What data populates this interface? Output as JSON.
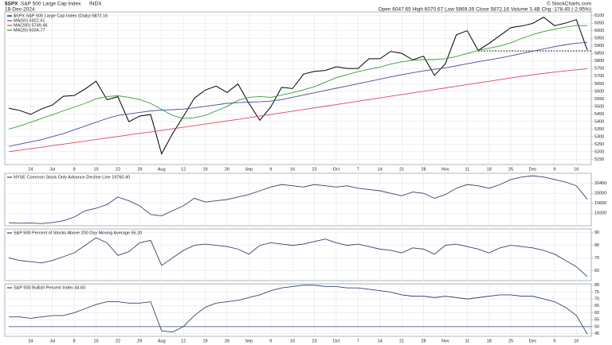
{
  "header": {
    "symbol": "$SPX",
    "name": "S&P 500 Large Cap Index",
    "exchange": "INDX",
    "date": "18-Dec-2024",
    "quote": "Open 6047.65 High 6070.67 Low 5869.39 Close 5872.16 Volume 3.4B Chg -178.45 (-2.95%)",
    "credit": "© StockCharts.com"
  },
  "chart_data": [
    {
      "type": "line",
      "categories": [
        null,
        null,
        "24",
        null,
        "Jul",
        null,
        "8",
        null,
        "15",
        null,
        "22",
        null,
        "29",
        null,
        "Aug",
        null,
        "12",
        null,
        "19",
        null,
        "26",
        null,
        "Sep",
        null,
        "9",
        null,
        "16",
        null,
        "23",
        null,
        "Oct",
        null,
        "7",
        null,
        "14",
        null,
        "21",
        null,
        "28",
        null,
        "Nov",
        null,
        "11",
        null,
        "18",
        null,
        "25",
        null,
        "Dec",
        null,
        "9",
        null,
        "16",
        null
      ],
      "series": [
        {
          "name": "$SPX S&P 500 Large Cap Index (Daily) 5872.16",
          "color": "#000000",
          "values": [
            5487,
            5473,
            5447,
            5483,
            5509,
            5567,
            5572,
            5615,
            5667,
            5544,
            5564,
            5399,
            5436,
            5446,
            5186,
            5319,
            5434,
            5554,
            5608,
            5634,
            5592,
            5648,
            5520,
            5408,
            5496,
            5626,
            5618,
            5713,
            5732,
            5738,
            5762,
            5751,
            5751,
            5815,
            5815,
            5864,
            5851,
            5808,
            5832,
            5705,
            5782,
            5973,
            6001,
            5870,
            5917,
            5969,
            6021,
            6032,
            6049,
            6090,
            6034,
            6051,
            6074,
            5872.16
          ]
        },
        {
          "name": "MA(50) 5922.61",
          "color": "#4a4a9c",
          "values": [
            5235,
            5250,
            5265,
            5280,
            5300,
            5320,
            5345,
            5370,
            5395,
            5420,
            5440,
            5450,
            5460,
            5470,
            5475,
            5478,
            5482,
            5490,
            5500,
            5510,
            5520,
            5525,
            5528,
            5530,
            5535,
            5545,
            5560,
            5575,
            5590,
            5605,
            5620,
            5635,
            5650,
            5665,
            5680,
            5695,
            5710,
            5722,
            5735,
            5745,
            5755,
            5768,
            5782,
            5795,
            5808,
            5820,
            5835,
            5850,
            5865,
            5880,
            5895,
            5908,
            5918,
            5922.61
          ]
        },
        {
          "name": "MA(200) 5749.46",
          "color": "#e0455a",
          "values": [
            5200,
            5210,
            5220,
            5230,
            5240,
            5250,
            5260,
            5270,
            5281,
            5291,
            5301,
            5311,
            5321,
            5331,
            5341,
            5352,
            5362,
            5372,
            5383,
            5393,
            5404,
            5414,
            5425,
            5436,
            5446,
            5457,
            5468,
            5479,
            5490,
            5501,
            5512,
            5523,
            5534,
            5545,
            5556,
            5567,
            5578,
            5589,
            5600,
            5611,
            5622,
            5633,
            5644,
            5655,
            5666,
            5677,
            5688,
            5699,
            5709,
            5718,
            5727,
            5735,
            5742,
            5749.46
          ]
        },
        {
          "name": "MA(20) 6034.77",
          "color": "#3a9a3a",
          "values": [
            5350,
            5370,
            5395,
            5420,
            5445,
            5470,
            5495,
            5520,
            5550,
            5565,
            5570,
            5560,
            5545,
            5520,
            5480,
            5440,
            5420,
            5425,
            5440,
            5470,
            5500,
            5540,
            5560,
            5565,
            5560,
            5575,
            5590,
            5610,
            5630,
            5660,
            5690,
            5710,
            5730,
            5745,
            5760,
            5780,
            5795,
            5805,
            5810,
            5810,
            5815,
            5830,
            5850,
            5870,
            5885,
            5900,
            5920,
            5950,
            5975,
            5995,
            6010,
            6025,
            6035,
            6034.77
          ]
        }
      ],
      "ylim": [
        5115,
        6125
      ],
      "yticks": [
        5150,
        5200,
        5250,
        5300,
        5350,
        5400,
        5450,
        5500,
        5550,
        5600,
        5650,
        5700,
        5750,
        5800,
        5850,
        5900,
        5950,
        6000,
        6050,
        6100
      ],
      "ref_line": 5867,
      "grid": true
    },
    {
      "type": "line",
      "series": [
        {
          "name": "NYSE Common Stock Only Advance-Decline Line 19760.40",
          "color": "#34456b",
          "values": [
            18820,
            18800,
            18810,
            18790,
            18830,
            18900,
            19050,
            19300,
            19400,
            19550,
            19850,
            19700,
            19500,
            19150,
            19100,
            19300,
            19500,
            19800,
            19650,
            19700,
            19750,
            19850,
            19950,
            20100,
            20250,
            20350,
            20300,
            20250,
            20350,
            20300,
            20250,
            20300,
            20200,
            20150,
            20100,
            20000,
            19900,
            20050,
            20000,
            19800,
            19950,
            20200,
            20350,
            20300,
            20200,
            20350,
            20550,
            20650,
            20700,
            20650,
            20550,
            20450,
            20300,
            19760.4
          ]
        }
      ],
      "ylim": [
        18700,
        20800
      ],
      "yticks": [
        19200,
        19600,
        20000,
        20400
      ],
      "grid": true
    },
    {
      "type": "line",
      "series": [
        {
          "name": "S&P 500 Percent of Stocks Above 200 Day Moving Average 55.20",
          "color": "#34456b",
          "values": [
            70,
            68,
            67,
            66,
            68,
            71,
            74,
            80,
            86,
            82,
            72,
            75,
            82,
            84,
            64,
            70,
            76,
            80,
            81,
            80,
            79,
            77,
            73,
            80,
            82,
            81,
            80,
            81,
            83,
            85,
            82,
            80,
            81,
            79,
            77,
            76,
            74,
            78,
            77,
            73,
            80,
            81,
            79,
            77,
            74,
            78,
            80,
            79,
            78,
            76,
            73,
            68,
            63,
            55.2
          ]
        }
      ],
      "ylim": [
        52,
        93
      ],
      "yticks": [
        60,
        70,
        80,
        90
      ],
      "grid": true
    },
    {
      "type": "line",
      "categories": [
        null,
        null,
        "24",
        null,
        "Jul",
        null,
        "8",
        null,
        "15",
        null,
        "22",
        null,
        "29",
        null,
        "Aug",
        null,
        "12",
        null,
        "19",
        null,
        "26",
        null,
        "Sep",
        null,
        "9",
        null,
        "16",
        null,
        "23",
        null,
        "Oct",
        null,
        "7",
        null,
        "14",
        null,
        "21",
        null,
        "28",
        null,
        "Nov",
        null,
        "11",
        null,
        "18",
        null,
        "25",
        null,
        "Dec",
        null,
        "9",
        null,
        "16",
        null
      ],
      "series": [
        {
          "name": "S&P 500 Bullish Percent Index 44.60",
          "color": "#34456b",
          "values": [
            57,
            57,
            56,
            57,
            58,
            58,
            60,
            63,
            66,
            68,
            68,
            67,
            67,
            68,
            47,
            46,
            50,
            58,
            64,
            67,
            68,
            69,
            71,
            73,
            76,
            78,
            79,
            80,
            80,
            79,
            79,
            78,
            78,
            77,
            76,
            75,
            73,
            72,
            72,
            71,
            72,
            71,
            70,
            71,
            72,
            73,
            73,
            72,
            72,
            70,
            68,
            64,
            58,
            44.6
          ]
        }
      ],
      "ylim": [
        43,
        81
      ],
      "yticks": [
        45,
        50,
        55,
        60,
        65,
        70,
        75,
        80
      ],
      "ref_line": 50,
      "grid": true
    }
  ]
}
